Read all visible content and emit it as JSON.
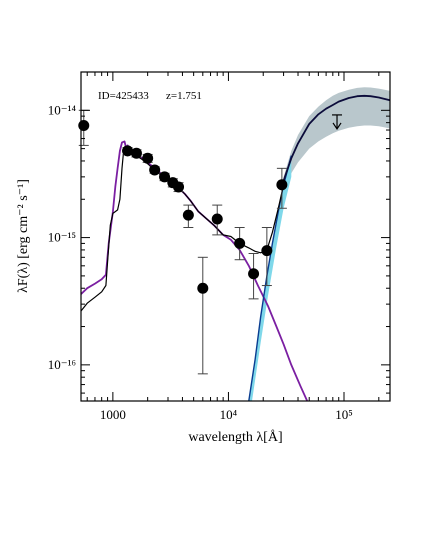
{
  "chart_data": {
    "type": "scatter",
    "annotation": {
      "id_text": "ID=425433",
      "z_text": "z=1.751"
    },
    "xlabel": "wavelength λ[Å]",
    "ylabel": "λF(λ) [erg cm⁻² s⁻¹]",
    "x_scale": "log",
    "y_scale": "log",
    "xlim": [
      530,
      250000
    ],
    "ylim": [
      5.2e-17,
      2e-14
    ],
    "x_ticks": [
      {
        "value": 1000,
        "label": "1000"
      },
      {
        "value": 10000,
        "label": "10⁴"
      },
      {
        "value": 100000,
        "label": "10⁵"
      }
    ],
    "y_ticks": [
      {
        "value": 1e-16,
        "label": "10⁻¹⁶"
      },
      {
        "value": 1e-15,
        "label": "10⁻¹⁵"
      },
      {
        "value": 1e-14,
        "label": "10⁻¹⁴"
      }
    ],
    "grid": false,
    "colors": {
      "points": "#000000",
      "total_model": "#000000",
      "stellar": "#7b1fa2",
      "agn_torus": "#0a3d91",
      "torus_band": "#7fd8ea",
      "fir_model": "#0b0b3a",
      "fir_band": "#b9c7cc"
    },
    "points": [
      {
        "x": 560,
        "y": 7.6e-15,
        "yerr_low": 5.3e-15,
        "yerr_high": 1e-14
      },
      {
        "x": 1340,
        "y": 4.8e-15,
        "yerr_low": 4.5e-15,
        "yerr_high": 5.1e-15
      },
      {
        "x": 1600,
        "y": 4.6e-15,
        "yerr_low": 4.3e-15,
        "yerr_high": 4.9e-15
      },
      {
        "x": 2000,
        "y": 4.2e-15,
        "yerr_low": 3.9e-15,
        "yerr_high": 4.5e-15
      },
      {
        "x": 2300,
        "y": 3.4e-15,
        "yerr_low": 3.2e-15,
        "yerr_high": 3.6e-15
      },
      {
        "x": 2800,
        "y": 3e-15,
        "yerr_low": 2.8e-15,
        "yerr_high": 3.2e-15
      },
      {
        "x": 3300,
        "y": 2.7e-15,
        "yerr_low": 2.5e-15,
        "yerr_high": 2.9e-15
      },
      {
        "x": 3700,
        "y": 2.5e-15,
        "yerr_low": 2.3e-15,
        "yerr_high": 2.7e-15
      },
      {
        "x": 4500,
        "y": 1.5e-15,
        "yerr_low": 1.2e-15,
        "yerr_high": 1.8e-15
      },
      {
        "x": 6000,
        "y": 4e-16,
        "yerr_low": 8.5e-17,
        "yerr_high": 7e-16
      },
      {
        "x": 8000,
        "y": 1.4e-15,
        "yerr_low": 1.05e-15,
        "yerr_high": 1.8e-15
      },
      {
        "x": 12500,
        "y": 9e-16,
        "yerr_low": 6.7e-16,
        "yerr_high": 1.2e-15
      },
      {
        "x": 16500,
        "y": 5.2e-16,
        "yerr_low": 3.3e-16,
        "yerr_high": 7.5e-16
      },
      {
        "x": 21500,
        "y": 7.9e-16,
        "yerr_low": 4.2e-16,
        "yerr_high": 1.2e-15
      },
      {
        "x": 29000,
        "y": 2.6e-15,
        "yerr_low": 1.7e-15,
        "yerr_high": 3.5e-15
      }
    ],
    "upper_limits": [
      {
        "x": 87000,
        "y": 9.2e-15
      }
    ],
    "series": [
      {
        "role": "total_model",
        "x": [
          530,
          600,
          700,
          800,
          870,
          900,
          950,
          1000,
          1050,
          1100,
          1150,
          1200,
          1230,
          1260,
          1300,
          1340,
          1400,
          1500,
          1600,
          1800,
          2000,
          2300,
          2600,
          3000,
          3400,
          3800,
          4200,
          4700,
          5500,
          6500,
          7500,
          9000,
          10500,
          12500,
          15000,
          17000,
          19000,
          21500,
          24000,
          27000,
          30000
        ],
        "y": [
          2.65e-16,
          3.05e-16,
          3.4e-16,
          3.75e-16,
          4.2e-16,
          6.5e-16,
          1.25e-15,
          1.55e-15,
          1.6e-15,
          1.65e-15,
          2e-15,
          3.5e-15,
          4.5e-15,
          4.7e-15,
          4.8e-15,
          4.4e-15,
          4.6e-15,
          4.6e-15,
          4.4e-15,
          4.1e-15,
          3.8e-15,
          3.4e-15,
          3.1e-15,
          2.85e-15,
          2.6e-15,
          2.4e-15,
          2.2e-15,
          1.95e-15,
          1.6e-15,
          1.4e-15,
          1.25e-15,
          1.05e-15,
          1.02e-15,
          9e-16,
          8.3e-16,
          7.8e-16,
          7.6e-16,
          8e-16,
          1.1e-15,
          1.7e-15,
          2.6e-15
        ]
      },
      {
        "role": "stellar",
        "x": [
          530,
          600,
          700,
          800,
          870,
          920,
          1000,
          1050,
          1100,
          1150,
          1200,
          1260,
          1300,
          1340,
          1400,
          1500,
          1600,
          1800,
          2000,
          2300,
          2600,
          3000,
          3400,
          3800,
          4200,
          4700,
          5500,
          6500,
          7500,
          9000,
          10500,
          12500,
          15000,
          18000,
          22000,
          26000,
          30000,
          35000,
          42000,
          48000
        ],
        "y": [
          3.6e-16,
          4e-16,
          4.35e-16,
          4.7e-16,
          5.1e-16,
          9e-16,
          1.6e-15,
          2.5e-15,
          3.5e-15,
          4.8e-15,
          5.6e-15,
          5.7e-15,
          5.1e-15,
          5.3e-15,
          5e-15,
          4.7e-15,
          4.5e-15,
          4.2e-15,
          3.9e-15,
          3.5e-15,
          3.2e-15,
          2.9e-15,
          2.6e-15,
          2.4e-15,
          2.2e-15,
          1.95e-15,
          1.6e-15,
          1.4e-15,
          1.25e-15,
          1.05e-15,
          9.6e-16,
          8e-16,
          6e-16,
          4.2e-16,
          2.9e-16,
          2e-16,
          1.45e-16,
          1e-16,
          6.8e-17,
          5.2e-17
        ]
      },
      {
        "role": "agn_torus",
        "x": [
          15000,
          17000,
          19000,
          21500,
          24000,
          27000,
          30000,
          35000
        ],
        "y": [
          5.2e-17,
          1.1e-16,
          2.4e-16,
          5e-16,
          9e-16,
          1.6e-15,
          2.6e-15,
          4.4e-15
        ]
      },
      {
        "role": "torus_band_lower",
        "x": [
          16000,
          19000,
          22000,
          26000,
          30000,
          35000
        ],
        "y": [
          5.2e-17,
          1.5e-16,
          3.5e-16,
          8.5e-16,
          1.7e-15,
          3e-15
        ]
      },
      {
        "role": "fir_model",
        "x": [
          30000,
          35000,
          40000,
          50000,
          60000,
          70000,
          80000,
          90000,
          110000,
          130000,
          150000,
          170000,
          200000,
          250000
        ],
        "y": [
          2.8e-15,
          4.2e-15,
          5.5e-15,
          7.8e-15,
          9.3e-15,
          1.03e-14,
          1.1e-14,
          1.17e-14,
          1.25e-14,
          1.29e-14,
          1.3e-14,
          1.29e-14,
          1.26e-14,
          1.2e-14
        ]
      },
      {
        "role": "fir_band_upper",
        "x": [
          30000,
          35000,
          40000,
          50000,
          60000,
          70000,
          80000,
          90000,
          110000,
          130000,
          150000,
          170000,
          200000,
          250000
        ],
        "y": [
          3e-15,
          4.8e-15,
          6.4e-15,
          9e-15,
          1.07e-14,
          1.2e-14,
          1.3e-14,
          1.37e-14,
          1.45e-14,
          1.5e-14,
          1.52e-14,
          1.51e-14,
          1.48e-14,
          1.42e-14
        ]
      },
      {
        "role": "fir_band_lower",
        "x": [
          30000,
          35000,
          40000,
          50000,
          60000,
          70000,
          80000,
          90000,
          110000,
          130000,
          150000,
          170000,
          200000,
          250000
        ],
        "y": [
          2.5e-15,
          3.2e-15,
          3.9e-15,
          5e-15,
          5.7e-15,
          6.2e-15,
          6.6e-15,
          6.9e-15,
          7.3e-15,
          7.5e-15,
          7.6e-15,
          7.6e-15,
          7.5e-15,
          7.2e-15
        ]
      }
    ]
  }
}
